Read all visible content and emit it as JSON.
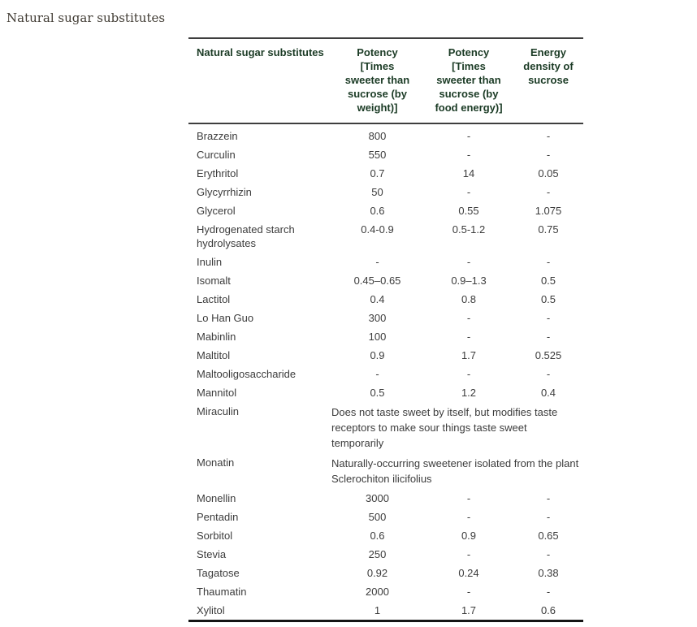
{
  "page": {
    "title": "Natural sugar substitutes"
  },
  "colors": {
    "header_text": "#1b3b25",
    "body_text": "#3c3c3c",
    "title_text": "#413c34",
    "rule_thin": "#3e3e3e",
    "rule_thick": "#141414",
    "background": "#ffffff"
  },
  "table": {
    "columns": [
      "Natural sugar substitutes",
      "Potency [Times sweeter than sucrose (by weight)]",
      "Potency [Times sweeter than sucrose (by food energy)]",
      "Energy density of sucrose"
    ],
    "rows": [
      {
        "name": "Brazzein",
        "values": [
          "800",
          "-",
          "-"
        ]
      },
      {
        "name": "Curculin",
        "values": [
          "550",
          "-",
          "-"
        ]
      },
      {
        "name": "Erythritol",
        "values": [
          "0.7",
          "14",
          "0.05"
        ]
      },
      {
        "name": "Glycyrrhizin",
        "values": [
          "50",
          "-",
          "-"
        ]
      },
      {
        "name": "Glycerol",
        "values": [
          "0.6",
          "0.55",
          "1.075"
        ]
      },
      {
        "name": "Hydrogenated starch hydrolysates",
        "values": [
          "0.4-0.9",
          "0.5-1.2",
          "0.75"
        ]
      },
      {
        "name": "Inulin",
        "values": [
          "-",
          "-",
          "-"
        ]
      },
      {
        "name": "Isomalt",
        "values": [
          "0.45–0.65",
          "0.9–1.3",
          "0.5"
        ]
      },
      {
        "name": "Lactitol",
        "values": [
          "0.4",
          "0.8",
          "0.5"
        ]
      },
      {
        "name": "Lo Han Guo",
        "values": [
          "300",
          "-",
          "-"
        ]
      },
      {
        "name": "Mabinlin",
        "values": [
          "100",
          "-",
          "-"
        ]
      },
      {
        "name": "Maltitol",
        "values": [
          "0.9",
          "1.7",
          "0.525"
        ]
      },
      {
        "name": "Maltooligosaccharide",
        "values": [
          "-",
          "-",
          "-"
        ]
      },
      {
        "name": "Mannitol",
        "values": [
          "0.5",
          "1.2",
          "0.4"
        ]
      },
      {
        "name": "Miraculin",
        "note": "Does not taste sweet by itself, but modifies taste receptors to make sour things taste sweet temporarily"
      },
      {
        "name": "Monatin",
        "note": "Naturally-occurring sweetener isolated from the plant Sclerochiton ilicifolius"
      },
      {
        "name": "Monellin",
        "values": [
          "3000",
          "-",
          "-"
        ]
      },
      {
        "name": "Pentadin",
        "values": [
          "500",
          "-",
          "-"
        ]
      },
      {
        "name": "Sorbitol",
        "values": [
          "0.6",
          "0.9",
          "0.65"
        ]
      },
      {
        "name": "Stevia",
        "values": [
          "250",
          "-",
          "-"
        ]
      },
      {
        "name": "Tagatose",
        "values": [
          "0.92",
          "0.24",
          "0.38"
        ]
      },
      {
        "name": "Thaumatin",
        "values": [
          "2000",
          "-",
          "-"
        ]
      },
      {
        "name": "Xylitol",
        "values": [
          "1",
          "1.7",
          "0.6"
        ]
      }
    ]
  }
}
